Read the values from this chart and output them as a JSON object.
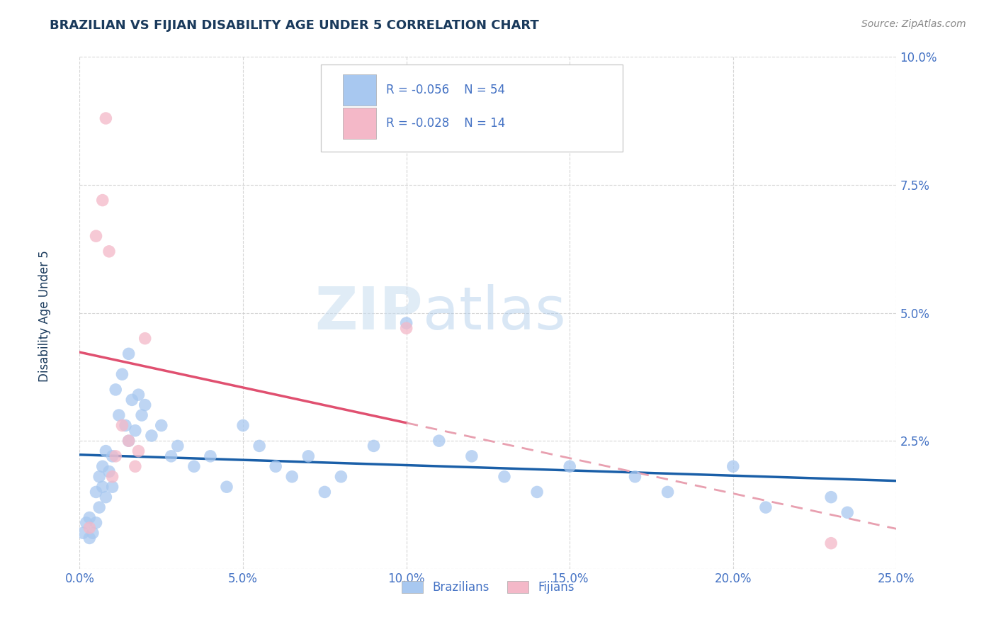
{
  "title": "BRAZILIAN VS FIJIAN DISABILITY AGE UNDER 5 CORRELATION CHART",
  "source": "Source: ZipAtlas.com",
  "ylabel": "Disability Age Under 5",
  "xlim": [
    0.0,
    0.25
  ],
  "ylim": [
    0.0,
    0.1
  ],
  "xticks": [
    0.0,
    0.05,
    0.1,
    0.15,
    0.2,
    0.25
  ],
  "xticklabels": [
    "0.0%",
    "5.0%",
    "10.0%",
    "15.0%",
    "20.0%",
    "25.0%"
  ],
  "yticks": [
    0.0,
    0.025,
    0.05,
    0.075,
    0.1
  ],
  "yticklabels": [
    "",
    "2.5%",
    "5.0%",
    "7.5%",
    "10.0%"
  ],
  "legend_labels": [
    "Brazilians",
    "Fijians"
  ],
  "brazil_R": -0.056,
  "brazil_N": 54,
  "fijian_R": -0.028,
  "fijian_N": 14,
  "title_color": "#1a3a5c",
  "brazil_color": "#a8c8f0",
  "fijian_color": "#f4b8c8",
  "brazil_line_color": "#1a5fa8",
  "fijian_line_color": "#e05070",
  "fijian_dash_color": "#e8a0b0",
  "axis_label_color": "#1a3a5c",
  "tick_color": "#4472c4",
  "watermark_zip": "ZIP",
  "watermark_atlas": "atlas",
  "brazil_x": [
    0.001,
    0.002,
    0.003,
    0.003,
    0.004,
    0.005,
    0.005,
    0.006,
    0.006,
    0.007,
    0.007,
    0.008,
    0.008,
    0.009,
    0.01,
    0.01,
    0.011,
    0.012,
    0.013,
    0.014,
    0.015,
    0.015,
    0.016,
    0.017,
    0.018,
    0.019,
    0.02,
    0.022,
    0.025,
    0.028,
    0.03,
    0.035,
    0.04,
    0.045,
    0.05,
    0.055,
    0.06,
    0.065,
    0.07,
    0.075,
    0.08,
    0.09,
    0.1,
    0.11,
    0.12,
    0.13,
    0.14,
    0.15,
    0.17,
    0.18,
    0.2,
    0.21,
    0.23,
    0.235
  ],
  "brazil_y": [
    0.007,
    0.009,
    0.006,
    0.01,
    0.007,
    0.015,
    0.009,
    0.018,
    0.012,
    0.02,
    0.016,
    0.023,
    0.014,
    0.019,
    0.022,
    0.016,
    0.035,
    0.03,
    0.038,
    0.028,
    0.042,
    0.025,
    0.033,
    0.027,
    0.034,
    0.03,
    0.032,
    0.026,
    0.028,
    0.022,
    0.024,
    0.02,
    0.022,
    0.016,
    0.028,
    0.024,
    0.02,
    0.018,
    0.022,
    0.015,
    0.018,
    0.024,
    0.048,
    0.025,
    0.022,
    0.018,
    0.015,
    0.02,
    0.018,
    0.015,
    0.02,
    0.012,
    0.014,
    0.011
  ],
  "fijian_x": [
    0.003,
    0.005,
    0.007,
    0.008,
    0.009,
    0.01,
    0.011,
    0.013,
    0.015,
    0.017,
    0.018,
    0.02,
    0.1,
    0.23
  ],
  "fijian_y": [
    0.008,
    0.065,
    0.072,
    0.088,
    0.062,
    0.018,
    0.022,
    0.028,
    0.025,
    0.02,
    0.023,
    0.045,
    0.047,
    0.005
  ]
}
